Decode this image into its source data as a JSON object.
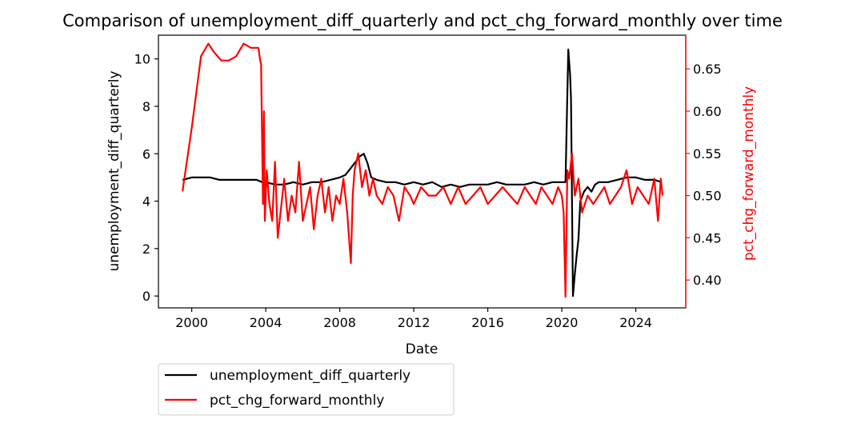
{
  "chart_data": {
    "type": "line",
    "title": "Comparison of unemployment_diff_quarterly and pct_chg_forward_monthly over time",
    "xlabel": "Date",
    "ylabel_left": "unemployment_diff_quarterly",
    "ylabel_right": "pct_chg_forward_monthly",
    "xlim": [
      1998.2,
      2026.7
    ],
    "ylim_left": [
      -0.5,
      11.0
    ],
    "ylim_right": [
      0.367,
      0.69
    ],
    "xticks": [
      2000,
      2004,
      2008,
      2012,
      2016,
      2020,
      2024
    ],
    "xtick_labels": [
      "2000",
      "2004",
      "2008",
      "2012",
      "2016",
      "2020",
      "2024"
    ],
    "yticks_left": [
      0,
      2,
      4,
      6,
      8,
      10
    ],
    "yticks_right": [
      0.4,
      0.45,
      0.5,
      0.55,
      0.6,
      0.65
    ],
    "ytick_labels_right": [
      "0.40",
      "0.45",
      "0.50",
      "0.55",
      "0.60",
      "0.65"
    ],
    "grid": false,
    "legend_placement": "below-left, outside axes",
    "series": [
      {
        "name": "unemployment_diff_quarterly",
        "axis": "left",
        "color": "#000000",
        "x": [
          1999.5,
          2000.0,
          2000.5,
          2001.0,
          2001.5,
          2002.0,
          2002.5,
          2003.0,
          2003.5,
          2003.8,
          2004.0,
          2004.5,
          2005.0,
          2005.5,
          2006.0,
          2006.5,
          2007.0,
          2007.5,
          2008.0,
          2008.3,
          2008.6,
          2008.9,
          2009.1,
          2009.3,
          2009.5,
          2009.7,
          2010.0,
          2010.5,
          2011.0,
          2011.5,
          2012.0,
          2012.5,
          2013.0,
          2013.5,
          2014.0,
          2014.5,
          2015.0,
          2015.5,
          2016.0,
          2016.5,
          2017.0,
          2017.5,
          2018.0,
          2018.5,
          2019.0,
          2019.5,
          2020.0,
          2020.2,
          2020.35,
          2020.45,
          2020.5,
          2020.6,
          2020.7,
          2020.8,
          2020.9,
          2021.0,
          2021.2,
          2021.4,
          2021.6,
          2021.8,
          2022.0,
          2022.5,
          2023.0,
          2023.5,
          2024.0,
          2024.5,
          2025.0,
          2025.4
        ],
        "values": [
          4.9,
          5.0,
          5.0,
          5.0,
          4.9,
          4.9,
          4.9,
          4.9,
          4.9,
          4.8,
          4.8,
          4.7,
          4.7,
          4.8,
          4.7,
          4.8,
          4.8,
          4.9,
          5.0,
          5.1,
          5.4,
          5.7,
          5.9,
          6.0,
          5.6,
          5.0,
          4.9,
          4.8,
          4.8,
          4.7,
          4.8,
          4.7,
          4.8,
          4.6,
          4.7,
          4.6,
          4.7,
          4.7,
          4.7,
          4.8,
          4.7,
          4.7,
          4.7,
          4.8,
          4.7,
          4.8,
          4.8,
          4.8,
          10.4,
          9.3,
          8.3,
          0.0,
          0.9,
          1.7,
          2.4,
          4.0,
          4.4,
          4.6,
          4.4,
          4.7,
          4.8,
          4.8,
          4.9,
          5.0,
          5.0,
          4.9,
          4.9,
          4.8
        ]
      },
      {
        "name": "pct_chg_forward_monthly",
        "axis": "right",
        "color": "#ff0000",
        "x": [
          1999.5,
          2000.0,
          2000.5,
          2000.9,
          2001.2,
          2001.6,
          2002.0,
          2002.4,
          2002.8,
          2003.2,
          2003.5,
          2003.6,
          2003.7,
          2003.75,
          2003.85,
          2003.9,
          2003.95,
          2004.05,
          2004.2,
          2004.35,
          2004.5,
          2004.65,
          2004.8,
          2005.0,
          2005.2,
          2005.4,
          2005.6,
          2005.8,
          2006.0,
          2006.2,
          2006.4,
          2006.6,
          2006.8,
          2007.0,
          2007.2,
          2007.4,
          2007.6,
          2007.8,
          2008.0,
          2008.2,
          2008.4,
          2008.6,
          2008.7,
          2008.8,
          2009.0,
          2009.2,
          2009.4,
          2009.6,
          2009.8,
          2010.0,
          2010.3,
          2010.6,
          2010.9,
          2011.2,
          2011.5,
          2011.8,
          2012.0,
          2012.4,
          2012.8,
          2013.2,
          2013.6,
          2014.0,
          2014.4,
          2014.8,
          2015.2,
          2015.6,
          2016.0,
          2016.4,
          2016.8,
          2017.2,
          2017.6,
          2018.0,
          2018.3,
          2018.6,
          2018.9,
          2019.2,
          2019.5,
          2019.8,
          2020.0,
          2020.1,
          2020.2,
          2020.3,
          2020.4,
          2020.55,
          2020.7,
          2020.9,
          2021.1,
          2021.4,
          2021.7,
          2022.0,
          2022.3,
          2022.6,
          2022.9,
          2023.2,
          2023.5,
          2023.8,
          2024.1,
          2024.4,
          2024.7,
          2025.0,
          2025.2,
          2025.35,
          2025.45
        ],
        "values": [
          0.505,
          0.58,
          0.665,
          0.68,
          0.67,
          0.66,
          0.66,
          0.665,
          0.68,
          0.675,
          0.675,
          0.675,
          0.66,
          0.655,
          0.49,
          0.6,
          0.47,
          0.53,
          0.49,
          0.47,
          0.54,
          0.45,
          0.48,
          0.52,
          0.47,
          0.5,
          0.48,
          0.54,
          0.47,
          0.49,
          0.51,
          0.46,
          0.5,
          0.52,
          0.48,
          0.51,
          0.47,
          0.5,
          0.49,
          0.52,
          0.48,
          0.42,
          0.5,
          0.53,
          0.55,
          0.51,
          0.53,
          0.5,
          0.52,
          0.5,
          0.49,
          0.51,
          0.5,
          0.47,
          0.51,
          0.5,
          0.49,
          0.51,
          0.5,
          0.5,
          0.51,
          0.49,
          0.51,
          0.49,
          0.5,
          0.51,
          0.49,
          0.5,
          0.51,
          0.5,
          0.49,
          0.51,
          0.5,
          0.49,
          0.51,
          0.5,
          0.49,
          0.51,
          0.5,
          0.48,
          0.38,
          0.53,
          0.52,
          0.55,
          0.5,
          0.52,
          0.48,
          0.5,
          0.49,
          0.5,
          0.51,
          0.49,
          0.5,
          0.51,
          0.53,
          0.49,
          0.51,
          0.5,
          0.49,
          0.52,
          0.47,
          0.52,
          0.5
        ]
      }
    ]
  }
}
